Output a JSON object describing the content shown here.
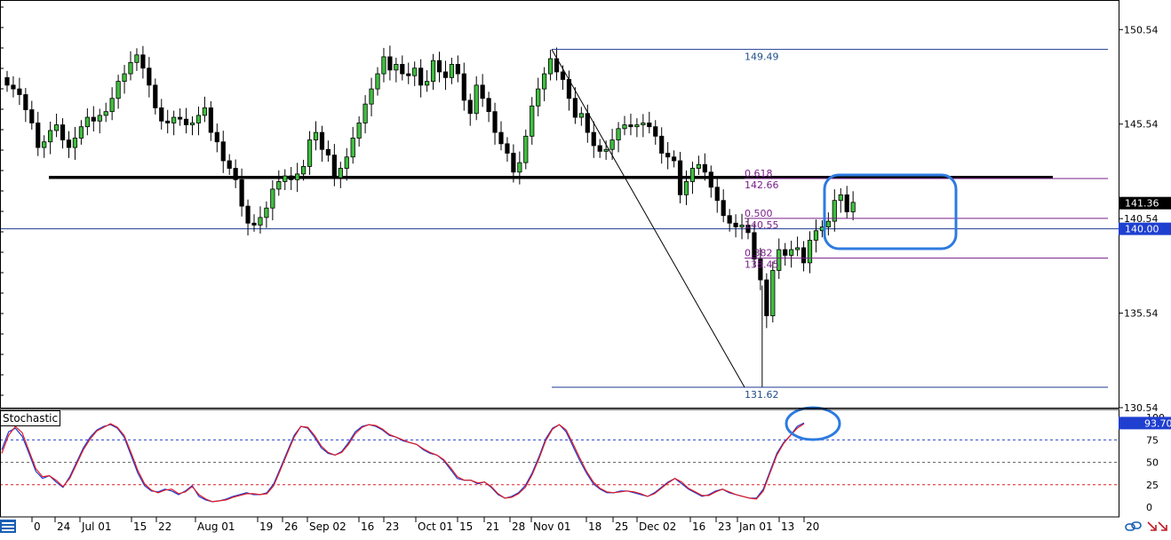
{
  "chart_data": [
    {
      "type": "candlestick",
      "panel": "main price chart",
      "title": "",
      "ylim": [
        130.54,
        151.54
      ],
      "y_ticks": [
        "150.54",
        "145.54",
        "140.54",
        "135.54",
        "130.54"
      ],
      "x_ticks": [
        "0",
        "24",
        "Jul 01",
        "15",
        "22",
        "Aug 01",
        "19",
        "26",
        "Sep 02",
        "16",
        "23",
        "Oct 01",
        "15",
        "21",
        "28",
        "Nov 01",
        "18",
        "25",
        "Dec 02",
        "16",
        "23",
        "Jan 01",
        "13",
        "20"
      ],
      "price_labels": {
        "current": "141.36",
        "horizontal_line": "140.00"
      },
      "fibonacci": {
        "high": 149.49,
        "low": 131.62,
        "levels": [
          {
            "ratio": "0.618",
            "price": "142.66"
          },
          {
            "ratio": "0.500",
            "price": "140.55"
          },
          {
            "ratio": "0.382",
            "price": "138.45"
          }
        ],
        "high_label": "149.49",
        "low_label": "131.62"
      },
      "horizontal_lines": [
        {
          "price": 140.0,
          "color": "#1f3a93",
          "style": "thin"
        },
        {
          "price": 142.72,
          "color": "#000000",
          "style": "thick"
        }
      ],
      "closes": [
        147.6,
        147.4,
        147.1,
        146.3,
        145.6,
        144.3,
        144.6,
        145.2,
        145.5,
        144.7,
        144.3,
        144.8,
        145.4,
        145.9,
        145.7,
        146.0,
        146.2,
        146.9,
        147.8,
        148.2,
        148.8,
        149.2,
        148.5,
        147.6,
        146.4,
        145.7,
        145.6,
        145.9,
        145.8,
        145.5,
        145.6,
        146.0,
        146.4,
        145.1,
        144.6,
        143.6,
        143.2,
        142.6,
        141.2,
        140.3,
        140.2,
        140.6,
        141.1,
        142.1,
        142.5,
        142.8,
        142.6,
        142.9,
        143.3,
        144.7,
        145.1,
        144.2,
        143.9,
        142.7,
        143.2,
        143.8,
        144.8,
        145.6,
        146.6,
        147.4,
        148.2,
        149.1,
        148.4,
        148.7,
        148.2,
        148.1,
        148.5,
        147.6,
        147.8,
        148.9,
        148.3,
        148.0,
        148.7,
        148.2,
        146.8,
        146.1,
        147.6,
        146.9,
        146.2,
        145.1,
        144.5,
        144.0,
        143.0,
        143.5,
        144.9,
        146.5,
        147.4,
        148.2,
        149.0,
        148.3,
        147.9,
        146.9,
        145.9,
        146.1,
        145.1,
        144.4,
        144.1,
        144.2,
        144.7,
        145.3,
        145.5,
        145.4,
        145.5,
        145.6,
        145.4,
        144.9,
        144.0,
        143.8,
        143.6,
        141.8,
        142.5,
        143.2,
        143.4,
        143.0,
        142.2,
        141.5,
        140.7,
        140.3,
        140.1,
        140.2,
        139.8,
        138.4,
        137.3,
        135.4,
        137.8,
        138.9,
        138.6,
        138.9,
        139.0,
        138.2,
        139.4,
        139.9,
        140.1,
        140.4,
        141.5,
        141.8,
        140.9,
        141.4
      ]
    },
    {
      "type": "line",
      "panel": "indicator",
      "title": "Stochastic",
      "ylim": [
        0,
        100
      ],
      "y_ticks": [
        "100",
        "75",
        "50",
        "25",
        "0"
      ],
      "current_value_label": "93.70",
      "levels": [
        75,
        50,
        25
      ],
      "series": [
        {
          "color": "#1c39d4",
          "values": [
            64,
            84,
            88,
            79,
            60,
            40,
            32,
            35,
            28,
            22,
            34,
            50,
            66,
            78,
            86,
            90,
            92,
            88,
            78,
            58,
            38,
            24,
            18,
            17,
            20,
            18,
            14,
            18,
            24,
            12,
            8,
            6,
            7,
            9,
            12,
            14,
            16,
            14,
            14,
            16,
            26,
            44,
            62,
            80,
            90,
            88,
            78,
            66,
            60,
            58,
            62,
            72,
            84,
            90,
            92,
            90,
            86,
            80,
            78,
            74,
            72,
            70,
            64,
            60,
            58,
            52,
            42,
            32,
            30,
            30,
            26,
            28,
            22,
            14,
            10,
            12,
            16,
            24,
            38,
            56,
            76,
            88,
            92,
            84,
            68,
            52,
            38,
            26,
            20,
            16,
            16,
            18,
            18,
            16,
            14,
            12,
            16,
            22,
            28,
            32,
            26,
            20,
            16,
            12,
            14,
            18,
            20,
            16,
            14,
            12,
            10,
            10,
            20,
            40,
            60,
            72,
            80,
            90,
            94
          ]
        },
        {
          "color": "#e01b24",
          "values": [
            60,
            80,
            90,
            83,
            63,
            43,
            34,
            35,
            30,
            23,
            32,
            48,
            64,
            76,
            85,
            89,
            93,
            89,
            80,
            61,
            41,
            26,
            19,
            16,
            19,
            20,
            15,
            17,
            23,
            14,
            9,
            6,
            7,
            8,
            11,
            13,
            15,
            15,
            14,
            15,
            24,
            42,
            60,
            78,
            90,
            89,
            80,
            68,
            61,
            58,
            61,
            70,
            82,
            89,
            92,
            91,
            87,
            81,
            78,
            75,
            72,
            70,
            65,
            61,
            58,
            53,
            44,
            34,
            30,
            30,
            27,
            28,
            23,
            15,
            10,
            11,
            15,
            22,
            36,
            54,
            74,
            87,
            92,
            86,
            71,
            55,
            40,
            28,
            21,
            17,
            16,
            17,
            18,
            17,
            15,
            12,
            15,
            21,
            27,
            32,
            28,
            21,
            17,
            13,
            13,
            17,
            20,
            17,
            14,
            12,
            10,
            9,
            18,
            38,
            58,
            71,
            80,
            88,
            93
          ]
        }
      ]
    }
  ]
}
